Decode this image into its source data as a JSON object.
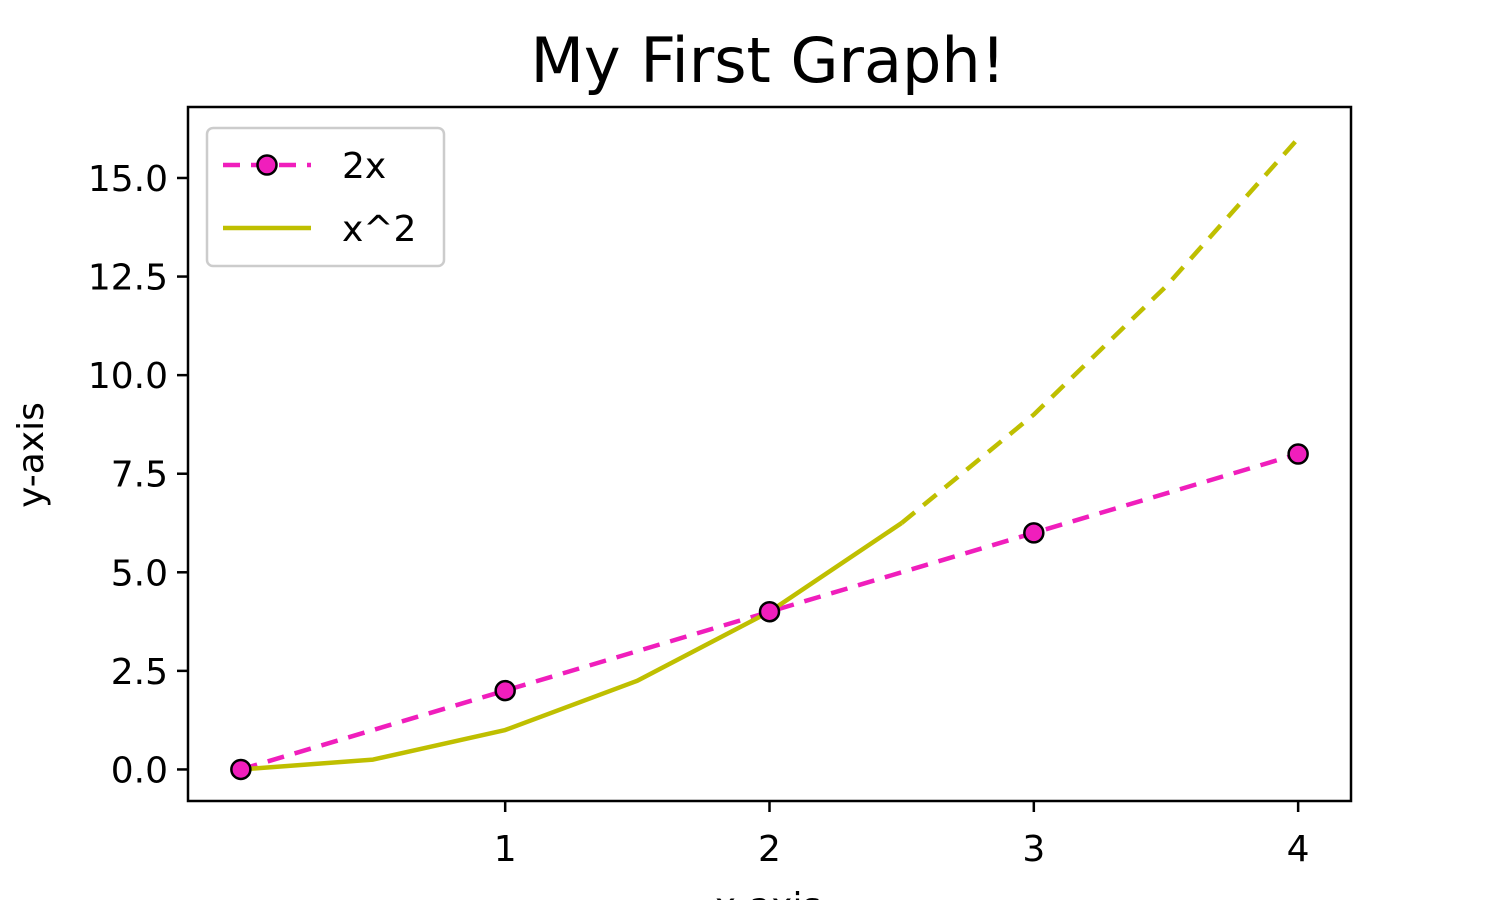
{
  "chart_data": {
    "type": "line",
    "title": "My First Graph!",
    "xlabel": "x-axis",
    "ylabel": "y-axis",
    "xlim": [
      -0.2,
      4.2
    ],
    "ylim": [
      -0.8,
      16.8
    ],
    "xticks": [
      1,
      2,
      3,
      4
    ],
    "xtick_labels": [
      "1",
      "2",
      "3",
      "4"
    ],
    "yticks": [
      0,
      2.5,
      5,
      7.5,
      10,
      12.5,
      15
    ],
    "ytick_labels": [
      "0.0",
      "2.5",
      "5.0",
      "7.5",
      "10.0",
      "12.5",
      "15.0"
    ],
    "grid": false,
    "legend_position": "upper-left",
    "series": [
      {
        "name": "2x",
        "x": [
          0,
          1,
          2,
          3,
          4
        ],
        "values": [
          0,
          2,
          4,
          6,
          8
        ],
        "color": "#f01ebc",
        "line_style": "dashed",
        "marker": "circle",
        "marker_edge_color": "#000000"
      },
      {
        "name": "x^2",
        "x": [
          0,
          0.5,
          1,
          1.5,
          2,
          2.5,
          3,
          3.5,
          4
        ],
        "values": [
          0,
          0.25,
          1,
          2.25,
          4,
          6.25,
          9,
          12.25,
          16
        ],
        "color": "#bfbf00",
        "line_style": "solid-then-dashed",
        "dash_from_x": 2.5,
        "marker": "none"
      }
    ]
  }
}
